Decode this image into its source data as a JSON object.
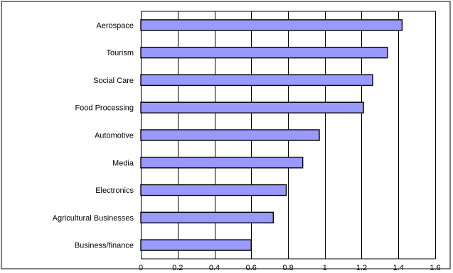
{
  "chart_data": {
    "type": "bar",
    "orientation": "horizontal",
    "title": "",
    "xlabel": "",
    "ylabel": "",
    "categories": [
      "Aerospace",
      "Tourism",
      "Social Care",
      "Food Processing",
      "Automotive",
      "Media",
      "Electronics",
      "Agricultural Businesses",
      "Business/finance"
    ],
    "values": [
      1.42,
      1.34,
      1.26,
      1.21,
      0.97,
      0.88,
      0.79,
      0.72,
      0.6
    ],
    "xlim": [
      0,
      1.6
    ],
    "xticks": [
      "0",
      "0.2",
      "0.4",
      "0.6",
      "0.8",
      "1",
      "1.2",
      "1.4",
      "1.6"
    ],
    "grid": "vertical",
    "legend": "none",
    "bar_color": "#9999ff",
    "border_color": "#000000"
  }
}
